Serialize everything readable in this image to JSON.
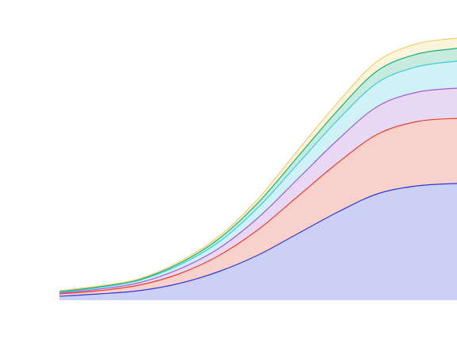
{
  "chart_data": {
    "type": "area",
    "stacked": true,
    "categories": [
      null,
      null,
      null,
      null,
      null,
      null,
      null,
      null,
      null,
      null,
      null
    ],
    "ylim": [
      0,
      350
    ],
    "series": [
      {
        "color": "#2a3bdb",
        "values": [
          5,
          8,
          12,
          21,
          36,
          57,
          84,
          111,
          134,
          144,
          147
        ]
      },
      {
        "color": "#e8402a",
        "values": [
          3,
          4,
          7,
          12,
          20,
          32,
          47,
          62,
          75,
          81,
          82
        ]
      },
      {
        "color": "#a55ad3",
        "values": [
          1,
          2,
          3,
          6,
          9,
          15,
          22,
          29,
          35,
          37,
          38
        ]
      },
      {
        "color": "#3cc9df",
        "values": [
          1,
          2,
          3,
          5,
          8,
          13,
          19,
          25,
          30,
          32,
          34
        ]
      },
      {
        "color": "#15b079",
        "values": [
          1,
          1,
          1,
          2,
          4,
          6,
          9,
          12,
          15,
          16,
          16
        ]
      },
      {
        "color": "#f2cf6a",
        "values": [
          1,
          1,
          1,
          2,
          3,
          5,
          8,
          10,
          12,
          13,
          13
        ]
      }
    ]
  }
}
